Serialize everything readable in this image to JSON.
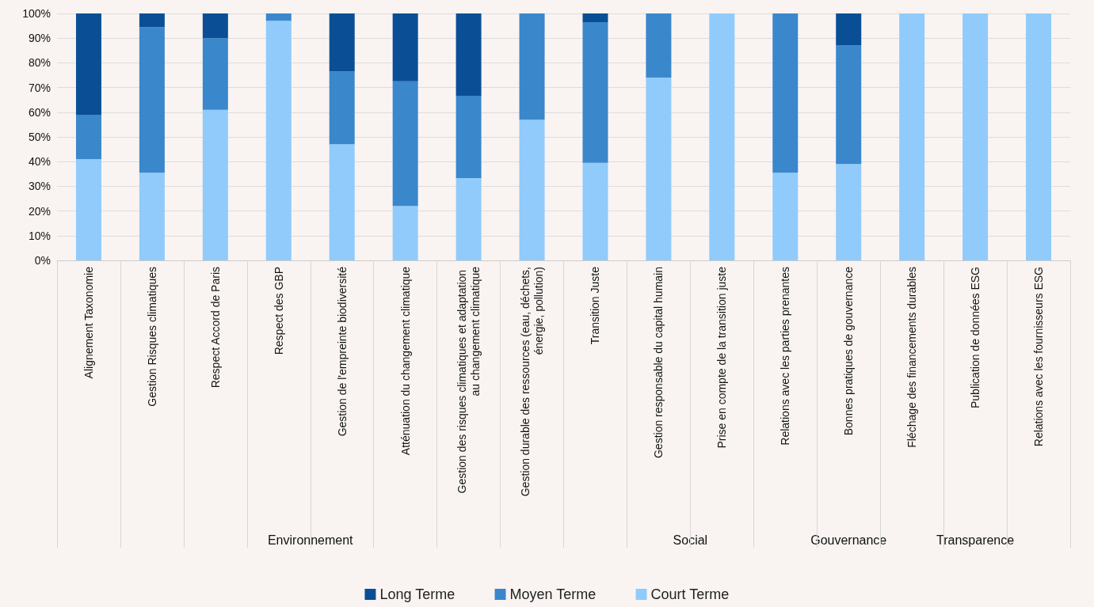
{
  "chart_data": {
    "type": "bar",
    "stacked": true,
    "grid": "y",
    "legend": "bottom",
    "categories": [
      "Alignement Taxonomie",
      "Gestion Risques climatiques",
      "Respect Accord de Paris",
      "Respect des GBP",
      "Gestion de l'empreinte biodiversité",
      "Atténuation du changement climatique",
      "Gestion des risques climatiques et adaptation au changement climatique",
      "Gestion durable des ressources (eau, déchets, énergie, pollution)",
      "Transition Juste",
      "Gestion responsable du capital humain",
      "Prise en compte de la transition juste",
      "Relations avec les parties prenantes",
      "Bonnes pratiques de gouvernance",
      "Fléchage des financements durables",
      "Publication de données ESG",
      "Relations avec les fournisseurs ESG"
    ],
    "series": [
      {
        "name": "Court Terme",
        "color": "#90cbfb",
        "values": [
          41,
          35.5,
          61,
          97,
          47,
          22,
          33.3,
          57,
          39.5,
          74,
          100,
          35.5,
          39,
          100,
          100,
          100
        ]
      },
      {
        "name": "Moyen Terme",
        "color": "#3a87cc",
        "values": [
          18,
          59,
          29,
          3,
          29.5,
          50.5,
          33.4,
          43,
          57,
          26,
          0,
          64.5,
          48,
          0,
          0,
          0
        ]
      },
      {
        "name": "Long Terme",
        "color": "#0a4f96",
        "values": [
          41,
          5.5,
          10,
          0,
          23.5,
          27.5,
          33.3,
          0,
          3.5,
          0,
          0,
          0,
          13,
          0,
          0,
          0
        ]
      }
    ],
    "ylim": [
      0,
      100
    ],
    "yticks": [
      {
        "value": 0,
        "label": "0%"
      },
      {
        "value": 10,
        "label": "10%"
      },
      {
        "value": 20,
        "label": "20%"
      },
      {
        "value": 30,
        "label": "30%"
      },
      {
        "value": 40,
        "label": "40%"
      },
      {
        "value": 50,
        "label": "50%"
      },
      {
        "value": 60,
        "label": "60%"
      },
      {
        "value": 70,
        "label": "70%"
      },
      {
        "value": 80,
        "label": "80%"
      },
      {
        "value": 90,
        "label": "90%"
      },
      {
        "value": 100,
        "label": "100%"
      }
    ],
    "annotations": [
      "Environnement",
      "Social",
      "Gouvernance",
      "Transparence"
    ]
  }
}
